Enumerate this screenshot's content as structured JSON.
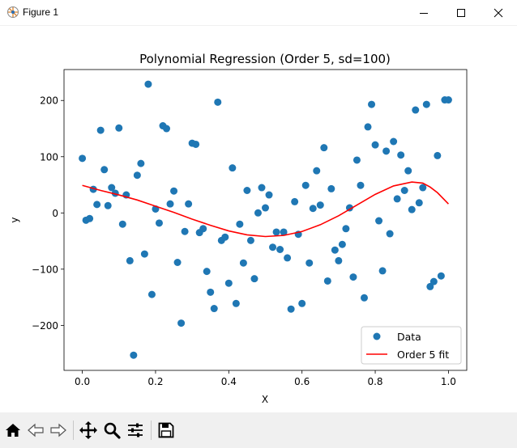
{
  "window": {
    "title": "Figure 1",
    "icons": [
      "figure-app-icon",
      "minimize-icon",
      "maximize-icon",
      "close-icon"
    ]
  },
  "toolbar": {
    "buttons": [
      "home-icon",
      "back-arrow-icon",
      "forward-arrow-icon",
      "pan-icon",
      "zoom-icon",
      "configure-subplots-icon",
      "save-icon"
    ]
  },
  "chart_data": {
    "type": "scatter",
    "title": "Polynomial Regression (Order 5, sd=100)",
    "xlabel": "X",
    "ylabel": "y",
    "xlim": [
      -0.05,
      1.05
    ],
    "ylim": [
      -280,
      255
    ],
    "xticks": [
      0.0,
      0.2,
      0.4,
      0.6,
      0.8,
      1.0
    ],
    "xtick_labels": [
      "0.0",
      "0.2",
      "0.4",
      "0.6",
      "0.8",
      "1.0"
    ],
    "yticks": [
      -200,
      -100,
      0,
      100,
      200
    ],
    "ytick_labels": [
      "−200",
      "−100",
      "0",
      "100",
      "200"
    ],
    "grid": false,
    "legend_position": "lower-right",
    "series": [
      {
        "name": "Data",
        "kind": "scatter",
        "color": "#1f77b4",
        "x": [
          0.0,
          0.01,
          0.02,
          0.03,
          0.04,
          0.05,
          0.06,
          0.07,
          0.08,
          0.09,
          0.1,
          0.11,
          0.12,
          0.13,
          0.14,
          0.15,
          0.16,
          0.17,
          0.18,
          0.19,
          0.2,
          0.21,
          0.22,
          0.23,
          0.24,
          0.25,
          0.26,
          0.27,
          0.28,
          0.29,
          0.3,
          0.31,
          0.32,
          0.33,
          0.34,
          0.35,
          0.36,
          0.37,
          0.38,
          0.39,
          0.4,
          0.41,
          0.42,
          0.43,
          0.44,
          0.45,
          0.46,
          0.47,
          0.48,
          0.49,
          0.5,
          0.51,
          0.52,
          0.53,
          0.54,
          0.55,
          0.56,
          0.57,
          0.58,
          0.59,
          0.6,
          0.61,
          0.62,
          0.63,
          0.64,
          0.65,
          0.66,
          0.67,
          0.68,
          0.69,
          0.7,
          0.71,
          0.72,
          0.73,
          0.74,
          0.75,
          0.76,
          0.77,
          0.78,
          0.79,
          0.8,
          0.81,
          0.82,
          0.83,
          0.84,
          0.85,
          0.86,
          0.87,
          0.88,
          0.89,
          0.9,
          0.91,
          0.92,
          0.93,
          0.94,
          0.95,
          0.96,
          0.97,
          0.98,
          0.99,
          1.0
        ],
        "y": [
          97,
          -13,
          -10,
          42,
          15,
          147,
          77,
          13,
          45,
          35,
          151,
          -20,
          32,
          -85,
          -253,
          67,
          88,
          -73,
          229,
          -145,
          7,
          -18,
          155,
          150,
          16,
          39,
          -88,
          -196,
          -33,
          16,
          124,
          122,
          -35,
          -28,
          -104,
          -141,
          -170,
          197,
          -49,
          -43,
          -125,
          80,
          -161,
          -20,
          -89,
          40,
          -49,
          -117,
          0,
          45,
          9,
          32,
          -61,
          -34,
          -65,
          -34,
          -80,
          -171,
          20,
          -38,
          -161,
          49,
          -89,
          8,
          75,
          14,
          116,
          -121,
          43,
          -66,
          -85,
          -56,
          -28,
          9,
          -114,
          94,
          49,
          -151,
          153,
          193,
          121,
          -14,
          -103,
          110,
          -37,
          127,
          25,
          103,
          40,
          75,
          6,
          183,
          18,
          45,
          193,
          -131,
          -122,
          102,
          -112,
          201,
          201
        ]
      },
      {
        "name": "Order 5 fit",
        "kind": "line",
        "color": "#ff0000",
        "x": [
          0.0,
          0.05,
          0.1,
          0.15,
          0.2,
          0.25,
          0.3,
          0.35,
          0.4,
          0.45,
          0.5,
          0.55,
          0.6,
          0.65,
          0.7,
          0.75,
          0.8,
          0.85,
          0.9,
          0.93,
          0.95,
          0.97,
          1.0
        ],
        "y": [
          49,
          40,
          32,
          23,
          12,
          1,
          -11,
          -22,
          -32,
          -39,
          -42,
          -40,
          -33,
          -21,
          -5,
          14,
          33,
          48,
          55,
          53,
          46,
          36,
          16
        ]
      }
    ]
  }
}
